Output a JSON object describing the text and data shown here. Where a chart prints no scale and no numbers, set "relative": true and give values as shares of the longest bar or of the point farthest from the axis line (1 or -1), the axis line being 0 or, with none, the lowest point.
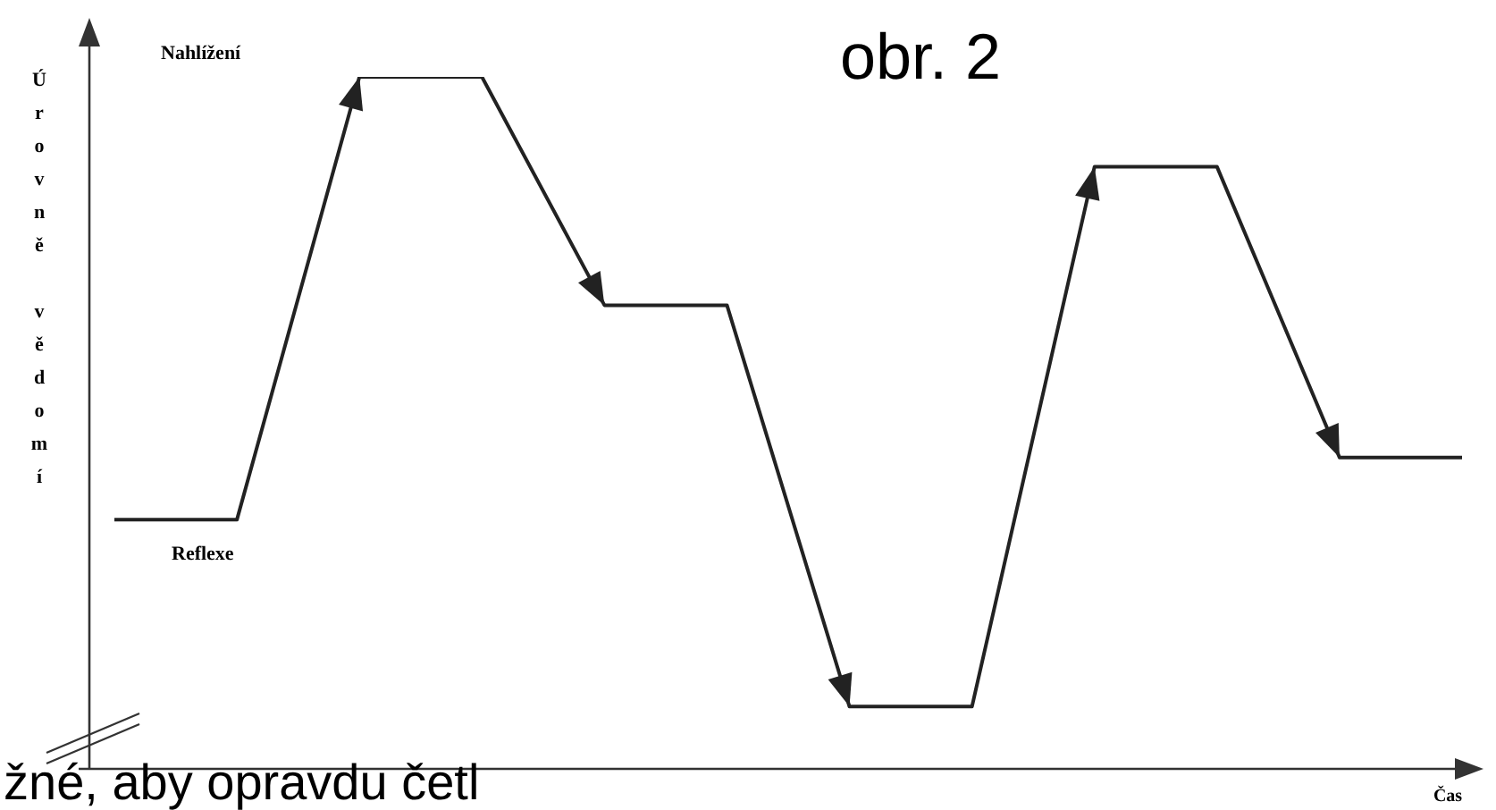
{
  "chart_data": {
    "type": "line",
    "relative": true,
    "title": "obr. 2",
    "xlabel": "Čas",
    "ylabel": "Úrovně vědomí",
    "annotations": [
      "Nahlížení",
      "Reflexe",
      "žné, aby opravdu četl"
    ],
    "categories": [
      null,
      null,
      null,
      null,
      null,
      null,
      null,
      null,
      null,
      null,
      null,
      null
    ],
    "series": [
      {
        "color": "#222222",
        "values": [
          0.36,
          0.36,
          1,
          1,
          0.67,
          0.67,
          0.09,
          0.09,
          0.87,
          0.87,
          0.45,
          0.45
        ]
      }
    ],
    "marker": "none",
    "grid": false,
    "legend": false
  }
}
